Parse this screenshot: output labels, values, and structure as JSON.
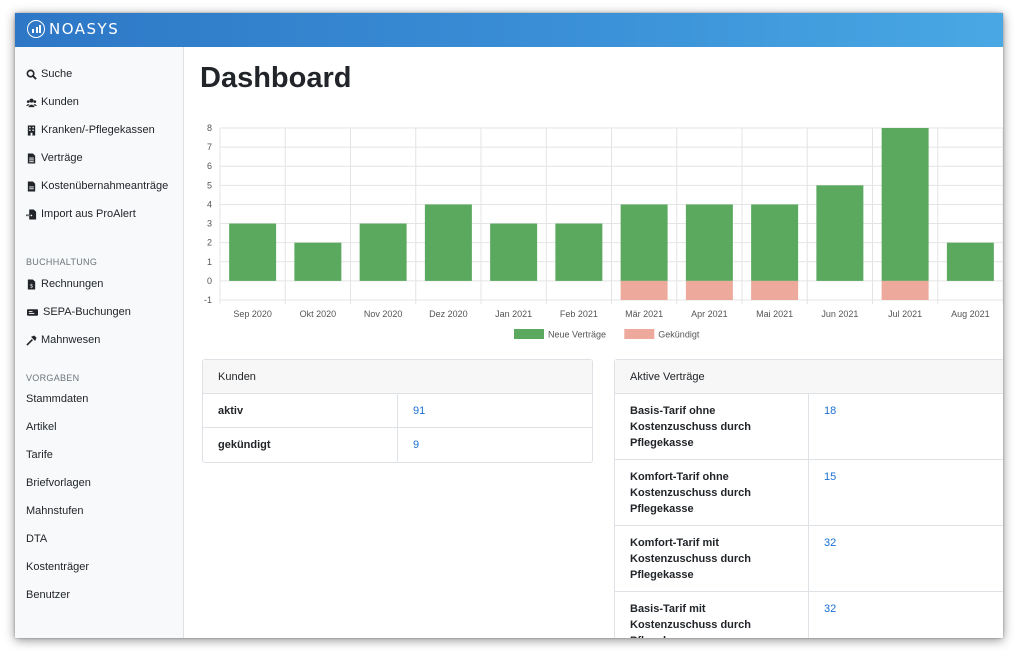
{
  "app": {
    "brand": "NOASYS"
  },
  "sidebar": {
    "items": [
      {
        "label": "Suche",
        "icon": "search-icon"
      },
      {
        "label": "Kunden",
        "icon": "users-icon"
      },
      {
        "label": "Kranken/-Pflegekassen",
        "icon": "building-icon"
      },
      {
        "label": "Verträge",
        "icon": "file-icon"
      },
      {
        "label": "Kostenübernahmeanträge",
        "icon": "file-icon"
      },
      {
        "label": "Import aus ProAlert",
        "icon": "file-import-icon"
      }
    ],
    "section_accounting": "BUCHHALTUNG",
    "accounting_items": [
      {
        "label": "Rechnungen",
        "icon": "invoice-icon"
      },
      {
        "label": "SEPA-Buchungen",
        "icon": "money-icon"
      },
      {
        "label": "Mahnwesen",
        "icon": "hammer-icon"
      }
    ],
    "section_presets": "VORGABEN",
    "preset_items": [
      {
        "label": "Stammdaten"
      },
      {
        "label": "Artikel"
      },
      {
        "label": "Tarife"
      },
      {
        "label": "Briefvorlagen"
      },
      {
        "label": "Mahnstufen"
      },
      {
        "label": "DTA"
      },
      {
        "label": "Kostenträger"
      },
      {
        "label": "Benutzer"
      }
    ]
  },
  "main": {
    "title": "Dashboard"
  },
  "colors": {
    "new": "#5aa95f",
    "cancelled": "#eda99b",
    "link": "#1a6fd1",
    "header_gradient_start": "#2d77c6",
    "header_gradient_end": "#49a8e4"
  },
  "chart_data": {
    "type": "bar",
    "categories": [
      "Sep 2020",
      "Okt 2020",
      "Nov 2020",
      "Dez 2020",
      "Jan 2021",
      "Feb 2021",
      "Mär 2021",
      "Apr 2021",
      "Mai 2021",
      "Jun 2021",
      "Jul 2021",
      "Aug 2021"
    ],
    "series": [
      {
        "name": "Neue Verträge",
        "values": [
          3,
          2,
          3,
          4,
          3,
          3,
          4,
          4,
          4,
          5,
          8,
          2
        ],
        "color": "#5aa95f"
      },
      {
        "name": "Gekündigt",
        "values": [
          0,
          0,
          0,
          0,
          0,
          0,
          -1,
          -1,
          -1,
          0,
          -1,
          0
        ],
        "color": "#eda99b"
      }
    ],
    "ylim": [
      -1,
      8
    ],
    "yticks": [
      -1,
      0,
      1,
      2,
      3,
      4,
      5,
      6,
      7,
      8
    ],
    "grid": true,
    "legend": "bottom"
  },
  "customers_card": {
    "title": "Kunden",
    "rows": [
      {
        "label": "aktiv",
        "value": "91"
      },
      {
        "label": "gekündigt",
        "value": "9"
      }
    ]
  },
  "contracts_card": {
    "title": "Aktive Verträge",
    "rows": [
      {
        "label": "Basis-Tarif ohne Kostenzuschuss durch Pflegekasse",
        "value": "18"
      },
      {
        "label": "Komfort-Tarif ohne Kostenzuschuss durch Pflegekasse",
        "value": "15"
      },
      {
        "label": "Komfort-Tarif mit Kostenzuschuss durch Pflegekasse",
        "value": "32"
      },
      {
        "label": "Basis-Tarif mit Kostenzuschuss durch Pflegekasse",
        "value": "32"
      }
    ]
  }
}
